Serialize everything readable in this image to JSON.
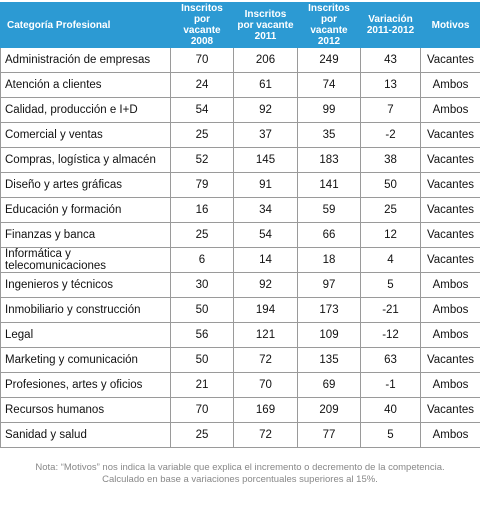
{
  "table": {
    "columns": [
      "Categoría Profesional",
      "Inscritos por vacante 2008",
      "Inscritos por vacante 2011",
      "Inscritos por vacante 2012",
      "Variación 2011-2012",
      "Motivos"
    ],
    "rows": [
      [
        "Administración de empresas",
        "70",
        "206",
        "249",
        "43",
        "Vacantes"
      ],
      [
        "Atención a clientes",
        "24",
        "61",
        "74",
        "13",
        "Ambos"
      ],
      [
        "Calidad, producción e I+D",
        "54",
        "92",
        "99",
        "7",
        "Ambos"
      ],
      [
        "Comercial y ventas",
        "25",
        "37",
        "35",
        "-2",
        "Vacantes"
      ],
      [
        "Compras, logística y almacén",
        "52",
        "145",
        "183",
        "38",
        "Vacantes"
      ],
      [
        "Diseño y artes gráficas",
        "79",
        "91",
        "141",
        "50",
        "Vacantes"
      ],
      [
        "Educación y formación",
        "16",
        "34",
        "59",
        "25",
        "Vacantes"
      ],
      [
        "Finanzas y banca",
        "25",
        "54",
        "66",
        "12",
        "Vacantes"
      ],
      [
        "Informática y telecomunicaciones",
        "6",
        "14",
        "18",
        "4",
        "Vacantes"
      ],
      [
        "Ingenieros y técnicos",
        "30",
        "92",
        "97",
        "5",
        "Ambos"
      ],
      [
        "Inmobiliario y construcción",
        "50",
        "194",
        "173",
        "-21",
        "Ambos"
      ],
      [
        "Legal",
        "56",
        "121",
        "109",
        "-12",
        "Ambos"
      ],
      [
        "Marketing y comunicación",
        "50",
        "72",
        "135",
        "63",
        "Vacantes"
      ],
      [
        "Profesiones, artes y oficios",
        "21",
        "70",
        "69",
        "-1",
        "Ambos"
      ],
      [
        "Recursos humanos",
        "70",
        "169",
        "209",
        "40",
        "Vacantes"
      ],
      [
        "Sanidad y salud",
        "25",
        "72",
        "77",
        "5",
        "Ambos"
      ]
    ]
  },
  "note": "Nota: “Motivos” nos indica la variable que explica el incremento o decremento de la competencia. Calculado en base a variaciones porcentuales superiores al 15%."
}
